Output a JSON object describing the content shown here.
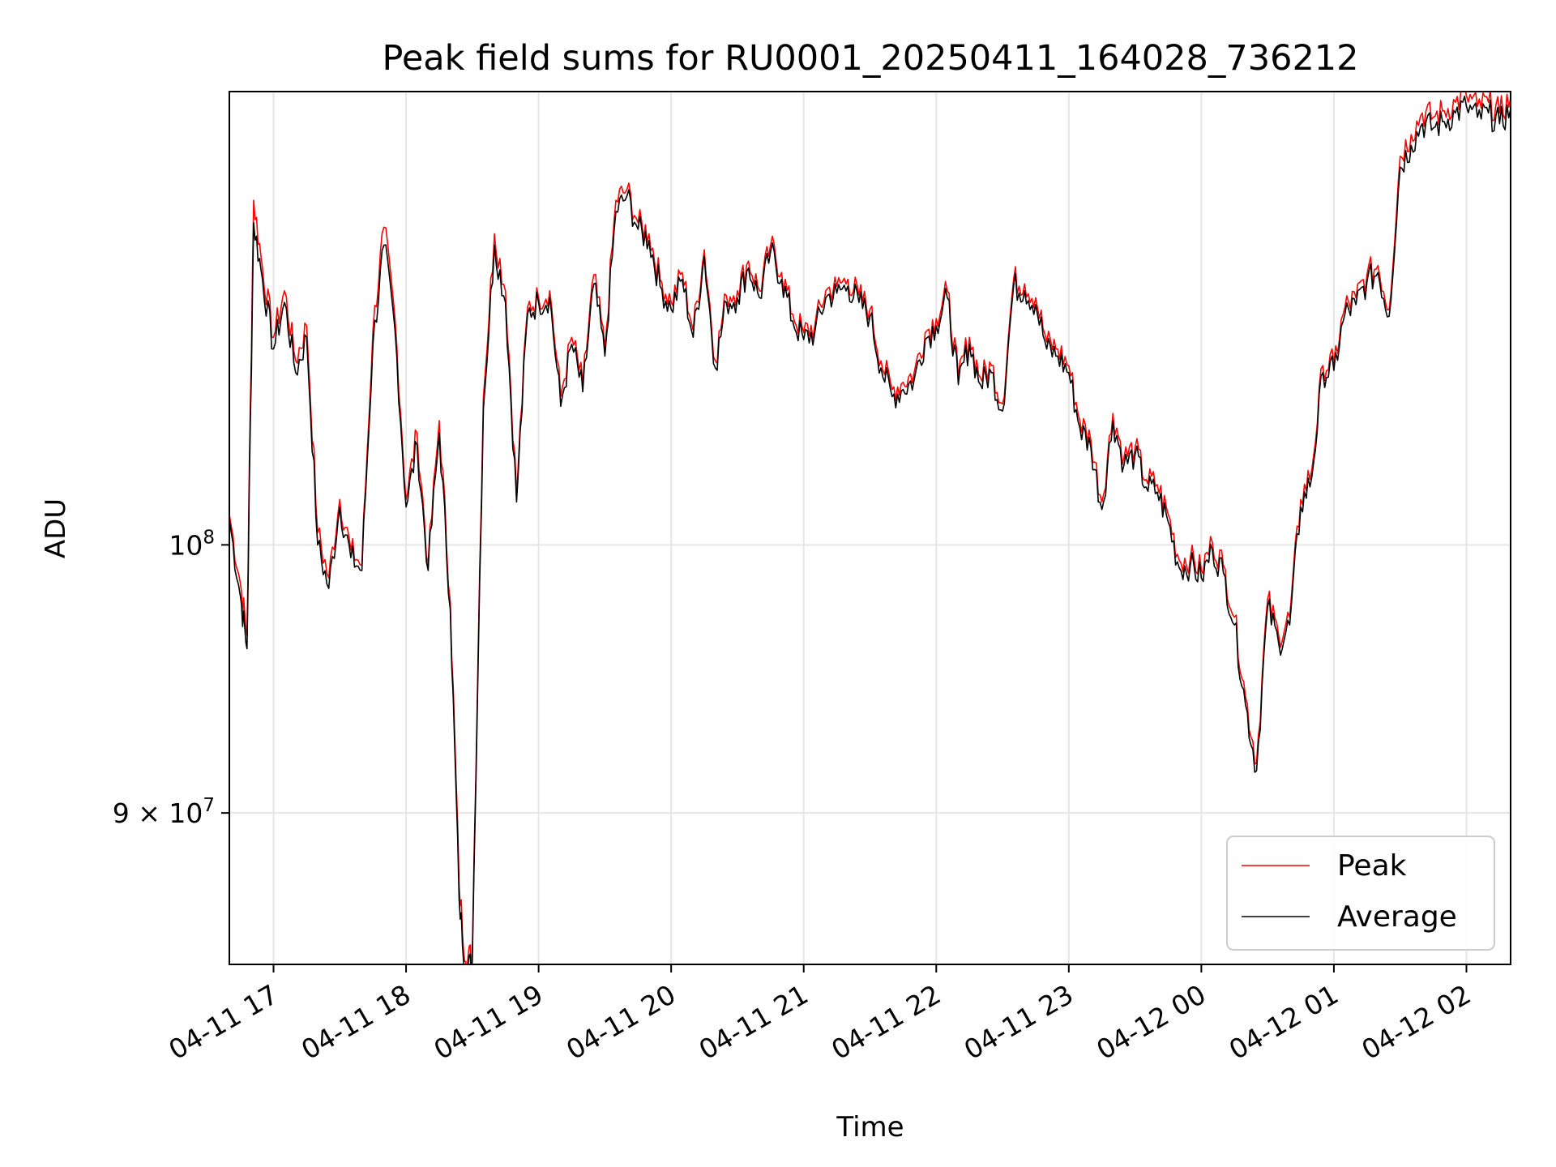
{
  "chart_data": {
    "type": "line",
    "title": "Peak field sums for RU0001_20250411_164028_736212",
    "xlabel": "Time",
    "ylabel": "ADU",
    "y_scale": "log",
    "ylim": [
      84800000,
      119500000
    ],
    "xlim": [
      "2025-04-11 16:40",
      "2025-04-12 02:20"
    ],
    "x_ticks": [
      "04-11 17",
      "04-11 18",
      "04-11 19",
      "04-11 20",
      "04-11 21",
      "04-11 22",
      "04-11 23",
      "04-12 00",
      "04-12 01",
      "04-12 02"
    ],
    "y_ticks": [
      {
        "value": 90000000,
        "mantissa": "9",
        "times": "×",
        "base": "10",
        "exp": "7"
      },
      {
        "value": 100000000,
        "mantissa": "",
        "times": "",
        "base": "10",
        "exp": "8"
      }
    ],
    "grid": true,
    "legend_position": "lower right",
    "x": [
      "04-11 16:40",
      "04-11 16:45",
      "04-11 16:48",
      "04-11 16:51",
      "04-11 16:55",
      "04-11 17:00",
      "04-11 17:05",
      "04-11 17:10",
      "04-11 17:15",
      "04-11 17:20",
      "04-11 17:25",
      "04-11 17:30",
      "04-11 17:35",
      "04-11 17:40",
      "04-11 17:45",
      "04-11 17:50",
      "04-11 17:55",
      "04-11 18:00",
      "04-11 18:05",
      "04-11 18:10",
      "04-11 18:15",
      "04-11 18:20",
      "04-11 18:24",
      "04-11 18:27",
      "04-11 18:30",
      "04-11 18:35",
      "04-11 18:40",
      "04-11 18:45",
      "04-11 18:50",
      "04-11 18:55",
      "04-11 19:00",
      "04-11 19:05",
      "04-11 19:10",
      "04-11 19:15",
      "04-11 19:20",
      "04-11 19:25",
      "04-11 19:30",
      "04-11 19:35",
      "04-11 19:40",
      "04-11 19:45",
      "04-11 19:50",
      "04-11 19:55",
      "04-11 20:00",
      "04-11 20:05",
      "04-11 20:10",
      "04-11 20:15",
      "04-11 20:20",
      "04-11 20:25",
      "04-11 20:30",
      "04-11 20:35",
      "04-11 20:40",
      "04-11 20:45",
      "04-11 20:50",
      "04-11 20:55",
      "04-11 21:00",
      "04-11 21:05",
      "04-11 21:10",
      "04-11 21:15",
      "04-11 21:20",
      "04-11 21:25",
      "04-11 21:30",
      "04-11 21:35",
      "04-11 21:40",
      "04-11 21:45",
      "04-11 21:50",
      "04-11 21:55",
      "04-11 22:00",
      "04-11 22:05",
      "04-11 22:10",
      "04-11 22:15",
      "04-11 22:20",
      "04-11 22:25",
      "04-11 22:30",
      "04-11 22:35",
      "04-11 22:40",
      "04-11 22:45",
      "04-11 22:50",
      "04-11 22:55",
      "04-11 23:00",
      "04-11 23:05",
      "04-11 23:10",
      "04-11 23:15",
      "04-11 23:20",
      "04-11 23:25",
      "04-11 23:30",
      "04-11 23:35",
      "04-11 23:40",
      "04-11 23:45",
      "04-11 23:50",
      "04-11 23:55",
      "04-12 00:00",
      "04-12 00:05",
      "04-12 00:10",
      "04-12 00:15",
      "04-12 00:20",
      "04-12 00:25",
      "04-12 00:30",
      "04-12 00:35",
      "04-12 00:40",
      "04-12 00:45",
      "04-12 00:50",
      "04-12 00:55",
      "04-12 01:00",
      "04-12 01:05",
      "04-12 01:10",
      "04-12 01:15",
      "04-12 01:20",
      "04-12 01:25",
      "04-12 01:30",
      "04-12 01:35",
      "04-12 01:40",
      "04-12 01:45",
      "04-12 01:50",
      "04-12 01:55",
      "04-12 02:00",
      "04-12 02:05",
      "04-12 02:10",
      "04-12 02:15",
      "04-12 02:20"
    ],
    "series": [
      {
        "name": "Peak",
        "color": "#ff0000",
        "values": [
          101200000,
          98500000,
          96500000,
          114500000,
          111500000,
          108500000,
          110500000,
          107500000,
          109000000,
          100500000,
          98700000,
          101800000,
          99800000,
          99200000,
          108800000,
          113300000,
          109300000,
          101800000,
          104500000,
          99200000,
          105000000,
          97800000,
          87500000,
          84900000,
          85200000,
          106000000,
          113000000,
          110500000,
          102000000,
          109800000,
          110200000,
          110500000,
          106000000,
          108500000,
          106500000,
          111200000,
          108000000,
          114500000,
          115000000,
          113500000,
          113000000,
          111000000,
          110000000,
          111300000,
          108800000,
          112300000,
          107500000,
          110300000,
          110500000,
          111800000,
          110500000,
          112500000,
          111300000,
          109500000,
          108700000,
          109000000,
          110500000,
          110700000,
          111000000,
          110300000,
          109700000,
          107500000,
          106300000,
          106600000,
          107000000,
          108700000,
          109300000,
          110500000,
          106800000,
          108500000,
          106800000,
          107300000,
          105700000,
          111000000,
          110800000,
          110200000,
          108300000,
          108000000,
          107300000,
          105000000,
          104200000,
          101700000,
          105300000,
          103500000,
          103900000,
          102600000,
          102400000,
          101200000,
          99400000,
          99500000,
          99000000,
          100100000,
          99200000,
          97200000,
          94200000,
          91800000,
          97900000,
          96500000,
          97200000,
          101800000,
          103000000,
          107300000,
          107400000,
          109800000,
          110200000,
          111200000,
          111600000,
          109700000,
          116500000,
          117500000,
          118500000,
          118300000,
          118600000,
          119000000,
          119300000,
          118800000,
          119000000,
          118500000,
          119200000
        ]
      },
      {
        "name": "Average",
        "color": "#000000",
        "values": [
          101000000,
          98000000,
          96000000,
          113500000,
          111000000,
          108000000,
          110000000,
          107000000,
          108500000,
          100000000,
          98300000,
          101500000,
          99500000,
          99000000,
          108200000,
          112500000,
          108800000,
          101500000,
          104000000,
          99000000,
          104500000,
          97500000,
          87000000,
          84600000,
          84900000,
          105500000,
          112500000,
          110000000,
          101700000,
          109500000,
          110000000,
          110200000,
          105600000,
          108200000,
          106200000,
          110800000,
          107700000,
          114000000,
          114700000,
          113200000,
          112700000,
          110700000,
          109700000,
          111000000,
          108500000,
          112000000,
          107200000,
          110000000,
          110200000,
          111500000,
          110200000,
          112200000,
          111000000,
          109200000,
          108400000,
          108700000,
          110200000,
          110400000,
          110700000,
          110000000,
          109400000,
          107200000,
          106000000,
          106300000,
          106700000,
          108400000,
          109000000,
          110200000,
          106500000,
          108200000,
          106500000,
          107000000,
          105400000,
          110700000,
          110500000,
          109900000,
          108000000,
          107700000,
          107000000,
          104700000,
          103900000,
          101400000,
          105000000,
          103200000,
          103600000,
          102300000,
          102100000,
          100900000,
          99100000,
          99200000,
          98700000,
          99800000,
          98900000,
          96900000,
          93900000,
          91500000,
          97600000,
          96200000,
          96900000,
          101500000,
          102700000,
          107000000,
          107100000,
          109500000,
          109900000,
          110900000,
          111300000,
          109400000,
          116000000,
          117000000,
          118000000,
          117800000,
          118100000,
          118500000,
          118800000,
          118300000,
          118500000,
          118000000,
          118700000
        ]
      }
    ]
  }
}
